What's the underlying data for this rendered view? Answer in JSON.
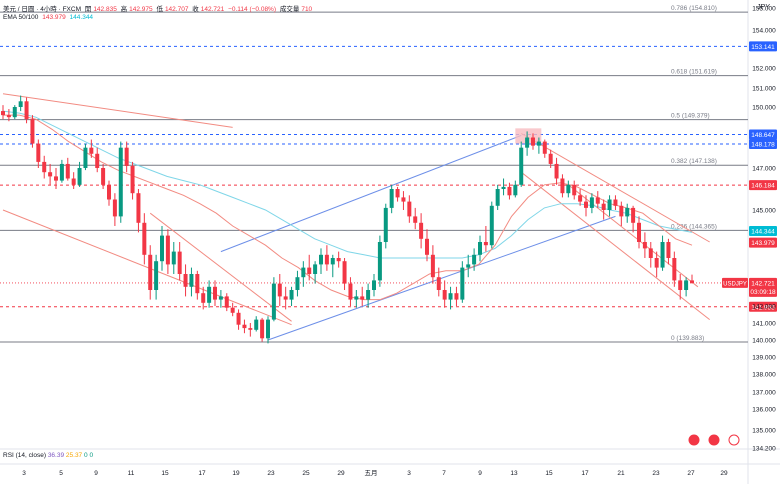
{
  "header": {
    "symbol_line": "美元 / 日圓 · 4小時 · FXCM",
    "open_label": "開",
    "open_value": "142.835",
    "high_label": "高",
    "high_value": "142.975",
    "low_label": "低",
    "low_value": "142.707",
    "close_label": "收",
    "close_value": "142.721",
    "change": "−0.114 (−0.08%)",
    "volume_label": "成交量",
    "volume_value": "710",
    "ema_label": "EMA 50/100",
    "ema50_value": "143.979",
    "ema100_value": "144.344",
    "rsi_label": "RSI (14, close)",
    "rsi_value": "36.39",
    "rsi_ma_value": "25.37",
    "rsi_extra1": "0",
    "rsi_extra2": "0"
  },
  "axis": {
    "currency_label": "JPY"
  },
  "colors": {
    "up": "#089981",
    "down": "#f23645",
    "ema50": "#f28b82",
    "ema100": "#7fd6e8",
    "channel_blue": "#6d8fe8",
    "channel_red": "#f28b82",
    "fib": "#787b86",
    "blue_level": "#2962ff",
    "red_level": "#f23645"
  },
  "chart_data": {
    "type": "candlestick",
    "title": "美元 / 日圓 · 4小時 · FXCM",
    "ylim": [
      134.0,
      155.4
    ],
    "y_ticks": [
      134.2,
      135.0,
      136.0,
      137.0,
      138.0,
      139.0,
      140.0,
      141.0,
      142.0,
      145.0,
      147.0,
      150.0,
      151.0,
      152.0,
      154.0,
      155.0
    ],
    "y_tick_labels": [
      "134.200",
      "135.000",
      "136.000",
      "137.000",
      "138.000",
      "139.000",
      "140.000",
      "141.000",
      "142.000",
      "145.000",
      "147.000",
      "150.000",
      "151.000",
      "152.000",
      "154.000",
      "155.000"
    ],
    "x_ticks": [
      "3",
      "5",
      "7",
      "9",
      "11",
      "15",
      "17",
      "19",
      "23",
      "25",
      "29",
      "五月",
      "3",
      "7",
      "9",
      "13",
      "15",
      "17",
      "21",
      "23",
      "27",
      "29"
    ],
    "candles": [
      [
        149.8,
        150.1,
        149.4,
        149.6
      ],
      [
        149.6,
        149.9,
        149.3,
        149.5
      ],
      [
        149.5,
        150.1,
        149.4,
        150.0
      ],
      [
        150.0,
        150.6,
        149.8,
        150.3
      ],
      [
        150.3,
        150.5,
        149.2,
        149.4
      ],
      [
        149.4,
        149.6,
        148.0,
        148.2
      ],
      [
        148.2,
        148.4,
        147.0,
        147.3
      ],
      [
        147.3,
        147.6,
        146.5,
        146.8
      ],
      [
        146.8,
        147.2,
        146.2,
        146.6
      ],
      [
        146.6,
        147.0,
        146.0,
        146.4
      ],
      [
        146.4,
        147.4,
        146.3,
        147.2
      ],
      [
        147.2,
        147.5,
        146.4,
        146.5
      ],
      [
        146.5,
        146.8,
        146.0,
        146.2
      ],
      [
        146.2,
        147.3,
        146.1,
        147.0
      ],
      [
        147.0,
        148.2,
        146.9,
        148.0
      ],
      [
        148.0,
        148.4,
        147.5,
        147.7
      ],
      [
        147.7,
        148.0,
        146.8,
        147.0
      ],
      [
        147.0,
        147.2,
        146.0,
        146.2
      ],
      [
        146.2,
        146.4,
        145.2,
        145.5
      ],
      [
        145.5,
        145.8,
        144.5,
        144.8
      ],
      [
        144.8,
        148.3,
        144.6,
        148.0
      ],
      [
        148.0,
        148.3,
        146.8,
        147.1
      ],
      [
        147.1,
        147.3,
        145.5,
        145.8
      ],
      [
        145.8,
        146.0,
        144.3,
        144.6
      ],
      [
        144.6,
        144.9,
        143.3,
        143.6
      ],
      [
        143.6,
        143.9,
        142.2,
        142.5
      ],
      [
        142.5,
        143.6,
        142.2,
        143.4
      ],
      [
        143.4,
        144.5,
        143.1,
        144.2
      ],
      [
        144.2,
        144.4,
        143.0,
        143.3
      ],
      [
        143.3,
        144.0,
        143.0,
        143.7
      ],
      [
        143.7,
        144.0,
        142.8,
        143.0
      ],
      [
        143.0,
        143.3,
        142.3,
        142.6
      ],
      [
        142.6,
        143.2,
        142.3,
        143.0
      ],
      [
        143.0,
        143.1,
        142.2,
        142.4
      ],
      [
        142.4,
        142.6,
        141.8,
        142.1
      ],
      [
        142.1,
        142.8,
        141.9,
        142.6
      ],
      [
        142.6,
        142.8,
        142.0,
        142.2
      ],
      [
        142.2,
        142.5,
        141.9,
        142.3
      ],
      [
        142.3,
        142.4,
        141.7,
        141.9
      ],
      [
        141.9,
        142.1,
        141.4,
        141.6
      ],
      [
        141.6,
        141.8,
        140.6,
        140.9
      ],
      [
        140.9,
        141.2,
        140.4,
        140.7
      ],
      [
        140.7,
        141.0,
        140.2,
        140.6
      ],
      [
        140.6,
        141.4,
        140.5,
        141.2
      ],
      [
        141.2,
        141.3,
        139.9,
        140.1
      ],
      [
        140.1,
        141.4,
        139.8,
        141.2
      ],
      [
        141.2,
        142.9,
        141.1,
        142.7
      ],
      [
        142.7,
        143.0,
        142.0,
        142.3
      ],
      [
        142.3,
        142.6,
        141.8,
        142.2
      ],
      [
        142.2,
        142.6,
        142.0,
        142.5
      ],
      [
        142.5,
        143.1,
        142.3,
        142.9
      ],
      [
        142.9,
        143.4,
        142.6,
        143.2
      ],
      [
        143.2,
        143.6,
        142.8,
        143.0
      ],
      [
        143.0,
        143.4,
        142.7,
        143.3
      ],
      [
        143.3,
        143.8,
        143.0,
        143.6
      ],
      [
        143.6,
        143.9,
        143.1,
        143.3
      ],
      [
        143.3,
        143.6,
        142.9,
        143.5
      ],
      [
        143.5,
        143.7,
        143.2,
        143.4
      ],
      [
        143.4,
        143.5,
        142.5,
        142.7
      ],
      [
        142.7,
        142.9,
        142.0,
        142.2
      ],
      [
        142.2,
        142.5,
        141.9,
        142.3
      ],
      [
        142.3,
        142.6,
        142.0,
        142.2
      ],
      [
        142.2,
        142.7,
        141.9,
        142.5
      ],
      [
        142.5,
        143.0,
        142.3,
        142.8
      ],
      [
        142.8,
        144.2,
        142.6,
        144.0
      ],
      [
        144.0,
        145.3,
        143.8,
        145.1
      ],
      [
        145.1,
        146.2,
        144.9,
        146.0
      ],
      [
        146.0,
        146.1,
        145.4,
        145.6
      ],
      [
        145.6,
        145.9,
        145.0,
        145.4
      ],
      [
        145.4,
        145.7,
        144.6,
        144.8
      ],
      [
        144.8,
        145.1,
        144.4,
        144.6
      ],
      [
        144.6,
        144.9,
        143.8,
        144.1
      ],
      [
        144.1,
        144.4,
        143.4,
        143.6
      ],
      [
        143.6,
        143.9,
        142.7,
        142.9
      ],
      [
        142.9,
        143.2,
        142.3,
        142.5
      ],
      [
        142.5,
        142.8,
        141.9,
        142.2
      ],
      [
        142.2,
        142.6,
        141.8,
        142.4
      ],
      [
        142.4,
        142.6,
        142.0,
        142.2
      ],
      [
        142.2,
        143.4,
        142.1,
        143.2
      ],
      [
        143.2,
        143.6,
        142.9,
        143.3
      ],
      [
        143.3,
        143.8,
        143.1,
        143.6
      ],
      [
        143.6,
        144.2,
        143.4,
        144.0
      ],
      [
        144.0,
        144.5,
        143.7,
        143.9
      ],
      [
        143.9,
        145.4,
        143.8,
        145.2
      ],
      [
        145.2,
        146.2,
        145.0,
        146.0
      ],
      [
        146.0,
        146.5,
        145.7,
        146.1
      ],
      [
        146.1,
        146.3,
        145.5,
        145.7
      ],
      [
        145.7,
        146.4,
        145.6,
        146.2
      ],
      [
        146.2,
        148.3,
        146.1,
        148.0
      ],
      [
        148.0,
        148.8,
        147.6,
        148.5
      ],
      [
        148.5,
        148.7,
        147.9,
        148.1
      ],
      [
        148.1,
        148.5,
        147.7,
        148.3
      ],
      [
        148.3,
        148.4,
        147.5,
        147.7
      ],
      [
        147.7,
        147.9,
        147.0,
        147.2
      ],
      [
        147.2,
        147.5,
        146.2,
        146.5
      ],
      [
        146.5,
        146.7,
        145.6,
        145.8
      ],
      [
        145.8,
        146.4,
        145.6,
        146.2
      ],
      [
        146.2,
        146.4,
        145.5,
        145.7
      ],
      [
        145.7,
        146.0,
        145.2,
        145.4
      ],
      [
        145.4,
        145.7,
        144.8,
        145.1
      ],
      [
        145.1,
        145.8,
        144.9,
        145.6
      ],
      [
        145.6,
        145.9,
        145.1,
        145.3
      ],
      [
        145.3,
        145.5,
        144.7,
        145.0
      ],
      [
        145.0,
        145.7,
        144.8,
        145.5
      ],
      [
        145.5,
        145.7,
        145.0,
        145.2
      ],
      [
        145.2,
        145.4,
        144.5,
        144.8
      ],
      [
        144.8,
        145.3,
        144.6,
        145.1
      ],
      [
        145.1,
        145.2,
        144.3,
        144.6
      ],
      [
        144.6,
        144.8,
        143.8,
        144.0
      ],
      [
        144.0,
        144.3,
        143.5,
        143.8
      ],
      [
        143.8,
        144.0,
        143.2,
        143.5
      ],
      [
        143.5,
        143.7,
        142.9,
        143.2
      ],
      [
        143.2,
        144.2,
        143.1,
        144.0
      ],
      [
        144.0,
        144.1,
        143.3,
        143.5
      ],
      [
        143.5,
        143.7,
        142.6,
        142.8
      ],
      [
        142.8,
        143.0,
        142.2,
        142.5
      ],
      [
        142.5,
        142.9,
        142.3,
        142.8
      ],
      [
        142.8,
        142.98,
        142.7,
        142.72
      ]
    ],
    "ema50": [
      149.6,
      149.6,
      149.4,
      148.9,
      148.3,
      147.8,
      147.3,
      146.9,
      146.6,
      146.3,
      146.0,
      145.7,
      145.3,
      144.9,
      144.5,
      144.2,
      143.9,
      143.5,
      143.2,
      142.8,
      142.5,
      142.3,
      142.2,
      142.2,
      142.4,
      142.7,
      143.0,
      143.1,
      143.1,
      143.3,
      143.9,
      144.8,
      145.6,
      146.2,
      146.3,
      146.1,
      145.7,
      145.3,
      145.1,
      144.9,
      144.5,
      144.1,
      143.9
    ],
    "ema100": [
      149.8,
      149.7,
      149.5,
      149.1,
      148.7,
      148.3,
      147.9,
      147.5,
      147.2,
      146.9,
      146.6,
      146.4,
      146.2,
      145.9,
      145.6,
      145.3,
      145.0,
      144.7,
      144.4,
      144.1,
      143.9,
      143.7,
      143.6,
      143.5,
      143.5,
      143.5,
      143.5,
      143.5,
      143.5,
      143.6,
      143.8,
      144.2,
      144.7,
      145.1,
      145.3,
      145.3,
      145.2,
      145.0,
      144.9,
      144.7,
      144.5,
      144.4,
      144.3
    ],
    "fib_levels": [
      {
        "label": "0.786 (154.810)",
        "value": 154.81
      },
      {
        "label": "0.618 (151.619)",
        "value": 151.619
      },
      {
        "label": "0.5 (149.379)",
        "value": 149.379
      },
      {
        "label": "0.382 (147.138)",
        "value": 147.138
      },
      {
        "label": "0.236 (144.365)",
        "value": 144.365
      },
      {
        "label": "0 (139.883)",
        "value": 139.883
      }
    ],
    "price_levels": [
      {
        "label": "153.141",
        "value": 153.141,
        "color": "blue"
      },
      {
        "label": "148.647",
        "value": 148.647,
        "color": "blue"
      },
      {
        "label": "148.178",
        "value": 148.178,
        "color": "blue"
      },
      {
        "label": "146.184",
        "value": 146.184,
        "color": "red"
      },
      {
        "label": "141.955",
        "value": 141.955,
        "color": "red"
      }
    ],
    "badges": [
      {
        "label": "144.344",
        "value": 144.344,
        "color": "#00bcd4"
      },
      {
        "label": "143.979",
        "value": 143.979,
        "color": "#f23645"
      }
    ],
    "current": {
      "symbol": "USDJPY",
      "price": "142.721",
      "countdown": "03:09:18",
      "value": 142.721
    }
  }
}
